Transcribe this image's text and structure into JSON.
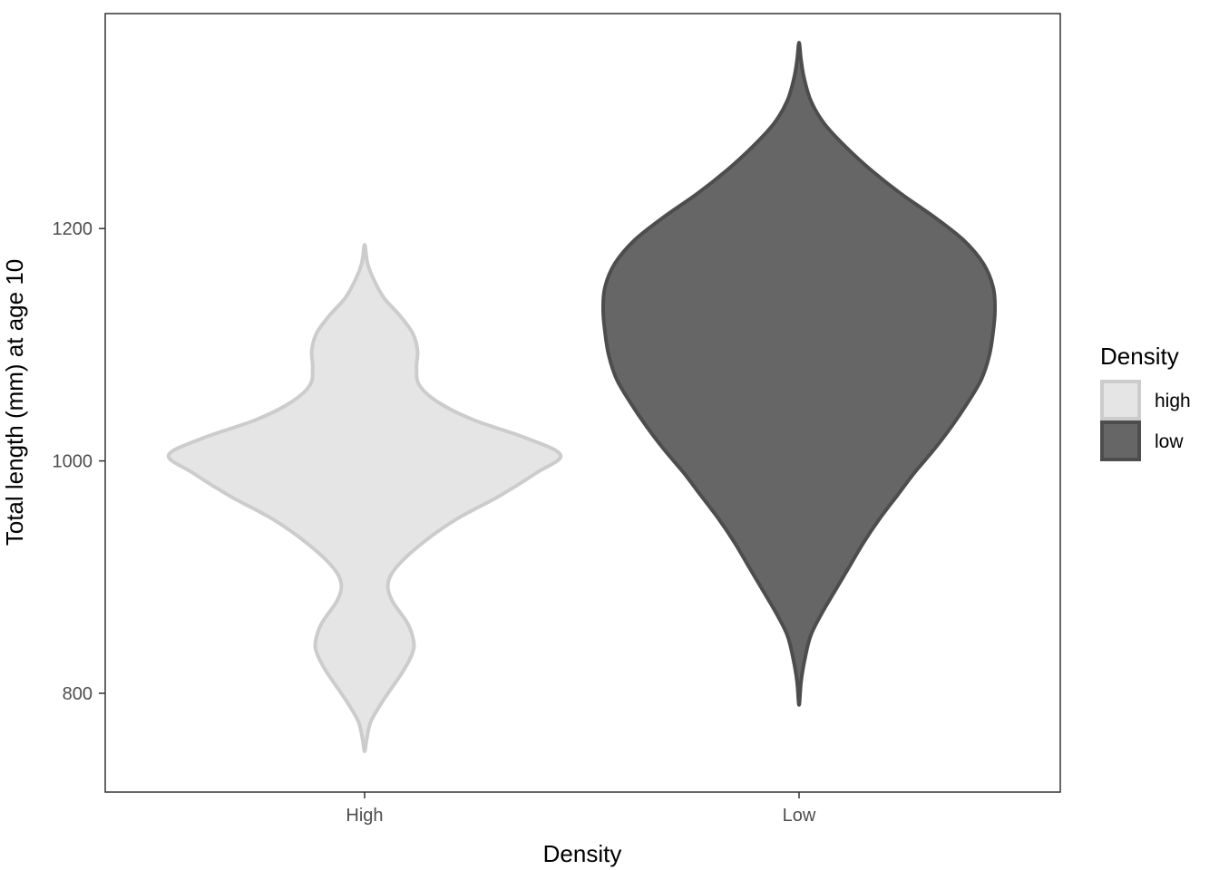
{
  "chart_data": {
    "type": "violin",
    "title": "",
    "xlabel": "Density",
    "ylabel": "Total length (mm) at age 10",
    "categories": [
      "High",
      "Low"
    ],
    "ylim": [
      715,
      1385
    ],
    "yticks": [
      800,
      1000,
      1200
    ],
    "grid": false,
    "legend": {
      "title": "Density",
      "position": "right",
      "entries": [
        {
          "label": "high",
          "fill": "#e5e5e5",
          "stroke": "#cccccc"
        },
        {
          "label": "low",
          "fill": "#666666",
          "stroke": "#4d4d4d"
        }
      ]
    },
    "series": [
      {
        "category": "High",
        "group": "high",
        "fill": "#e5e5e5",
        "stroke": "#cccccc",
        "min": 750,
        "max": 1186,
        "profile": [
          [
            750,
            0.0
          ],
          [
            760,
            0.01
          ],
          [
            775,
            0.03
          ],
          [
            790,
            0.08
          ],
          [
            805,
            0.14
          ],
          [
            820,
            0.2
          ],
          [
            835,
            0.245
          ],
          [
            845,
            0.25
          ],
          [
            860,
            0.22
          ],
          [
            880,
            0.14
          ],
          [
            895,
            0.12
          ],
          [
            910,
            0.17
          ],
          [
            930,
            0.3
          ],
          [
            950,
            0.47
          ],
          [
            970,
            0.69
          ],
          [
            990,
            0.88
          ],
          [
            1005,
            1.0
          ],
          [
            1020,
            0.82
          ],
          [
            1035,
            0.56
          ],
          [
            1050,
            0.38
          ],
          [
            1065,
            0.28
          ],
          [
            1080,
            0.265
          ],
          [
            1095,
            0.27
          ],
          [
            1110,
            0.245
          ],
          [
            1125,
            0.18
          ],
          [
            1140,
            0.1
          ],
          [
            1155,
            0.05
          ],
          [
            1170,
            0.015
          ],
          [
            1186,
            0.0
          ]
        ]
      },
      {
        "category": "Low",
        "group": "low",
        "fill": "#666666",
        "stroke": "#4d4d4d",
        "min": 790,
        "max": 1360,
        "profile": [
          [
            790,
            0.0
          ],
          [
            810,
            0.01
          ],
          [
            830,
            0.03
          ],
          [
            850,
            0.06
          ],
          [
            870,
            0.12
          ],
          [
            890,
            0.19
          ],
          [
            910,
            0.26
          ],
          [
            930,
            0.33
          ],
          [
            950,
            0.41
          ],
          [
            970,
            0.5
          ],
          [
            990,
            0.59
          ],
          [
            1010,
            0.69
          ],
          [
            1030,
            0.78
          ],
          [
            1050,
            0.86
          ],
          [
            1070,
            0.93
          ],
          [
            1090,
            0.97
          ],
          [
            1110,
            0.99
          ],
          [
            1130,
            1.0
          ],
          [
            1150,
            0.99
          ],
          [
            1170,
            0.94
          ],
          [
            1190,
            0.84
          ],
          [
            1210,
            0.69
          ],
          [
            1230,
            0.52
          ],
          [
            1250,
            0.37
          ],
          [
            1270,
            0.24
          ],
          [
            1290,
            0.13
          ],
          [
            1310,
            0.06
          ],
          [
            1330,
            0.025
          ],
          [
            1345,
            0.01
          ],
          [
            1360,
            0.0
          ]
        ]
      }
    ]
  }
}
